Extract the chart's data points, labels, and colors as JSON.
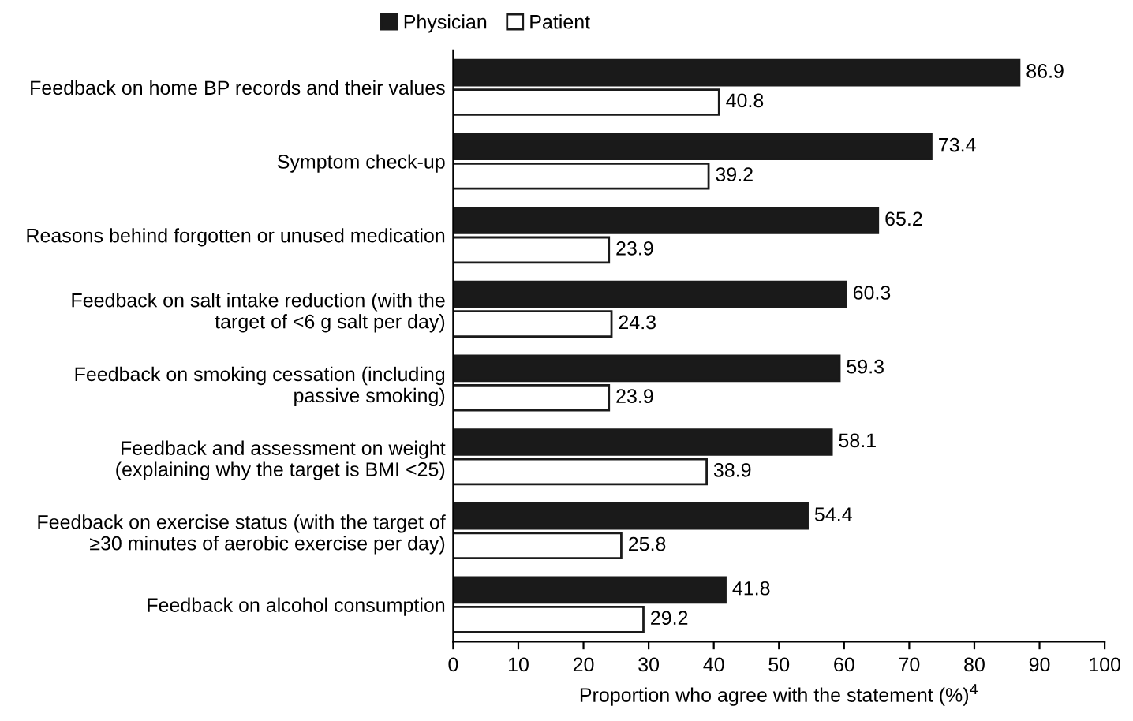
{
  "chart_data": {
    "type": "bar",
    "orientation": "horizontal",
    "categories": [
      "Feedback on home BP records and their values",
      "Symptom check-up",
      "Reasons behind forgotten or unused medication",
      "Feedback on salt intake reduction (with the\ntarget of <6 g salt per day)",
      "Feedback on smoking cessation (including\npassive smoking)",
      "Feedback and assessment on weight\n(explaining why the target is BMI <25)",
      "Feedback on exercise status (with the target of\n≥30 minutes of aerobic exercise per day)",
      "Feedback on alcohol consumption"
    ],
    "series": [
      {
        "name": "Physician",
        "color": "#1a1a1a",
        "values": [
          86.9,
          73.4,
          65.2,
          60.3,
          59.3,
          58.1,
          54.4,
          41.8
        ]
      },
      {
        "name": "Patient",
        "color": "#ffffff",
        "values": [
          40.8,
          39.2,
          23.9,
          24.3,
          23.9,
          38.9,
          25.8,
          29.2
        ]
      }
    ],
    "xlabel": "Proportion who agree with the statement (%)$^{4}$",
    "xlim": [
      0,
      100
    ],
    "xticks": [
      0,
      10,
      20,
      30,
      40,
      50,
      60,
      70,
      80,
      90,
      100
    ],
    "data_labels": true,
    "grid": false,
    "legend": "top"
  }
}
